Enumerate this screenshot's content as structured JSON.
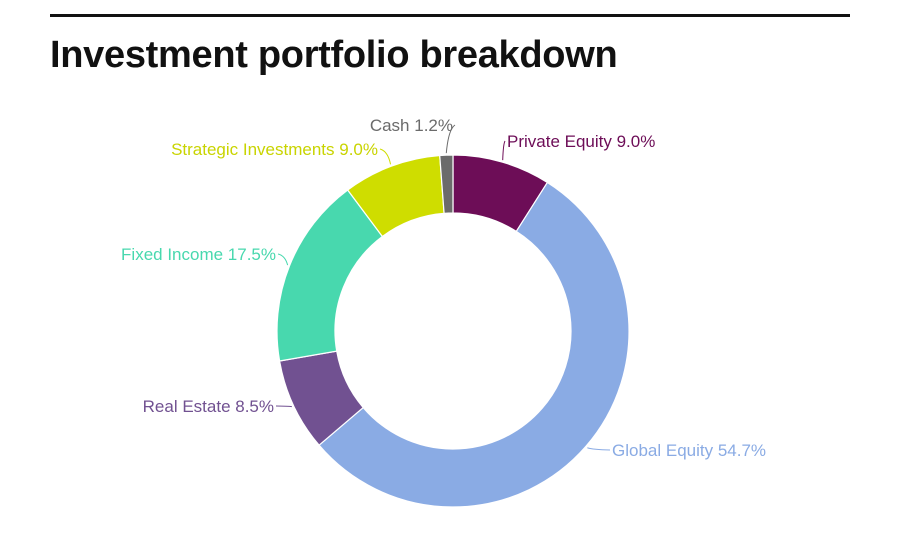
{
  "header": {
    "title": "Investment portfolio breakdown"
  },
  "chart_data": {
    "type": "pie",
    "variant": "donut",
    "title": "Investment portfolio breakdown",
    "slices": [
      {
        "name": "Private Equity",
        "value": 9.0,
        "label": "Private Equity 9.0%",
        "color": "#6d0d57"
      },
      {
        "name": "Global Equity",
        "value": 54.7,
        "label": "Global Equity 54.7%",
        "color": "#8aabe4"
      },
      {
        "name": "Real Estate",
        "value": 8.5,
        "label": "Real Estate 8.5%",
        "color": "#715191"
      },
      {
        "name": "Fixed Income",
        "value": 17.5,
        "label": "Fixed Income 17.5%",
        "color": "#48d8ae"
      },
      {
        "name": "Strategic Investments",
        "value": 9.0,
        "label": "Strategic Investments 9.0%",
        "color": "#cfdd00"
      },
      {
        "name": "Cash",
        "value": 1.2,
        "label": "Cash 1.2%",
        "color": "#6b6b6b"
      }
    ]
  }
}
